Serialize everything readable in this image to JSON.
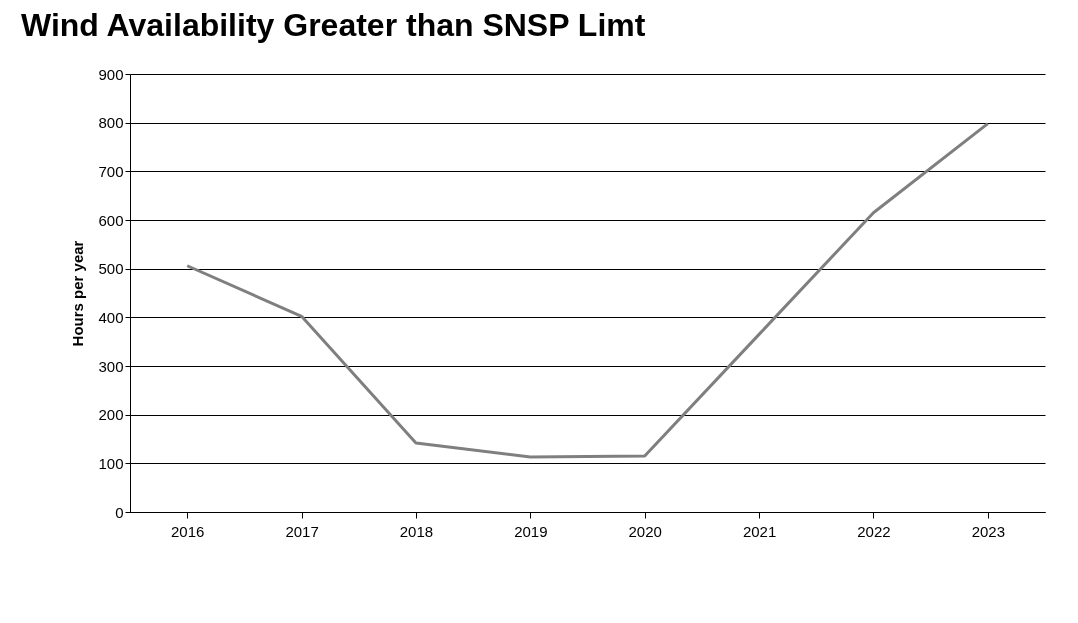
{
  "chart_data": {
    "type": "line",
    "title": "Wind Availability Greater than SNSP Limt",
    "ylabel": "Hours per year",
    "categories": [
      "2016",
      "2017",
      "2018",
      "2019",
      "2020",
      "2021",
      "2022",
      "2023"
    ],
    "series": [
      {
        "color": "#7f7f7f",
        "values": [
          506,
          402,
          142,
          113,
          115,
          365,
          615,
          798
        ]
      }
    ],
    "ylim": [
      0,
      900
    ],
    "yticks": [
      0,
      100,
      200,
      300,
      400,
      500,
      600,
      700,
      800,
      900
    ],
    "grid": "y",
    "marker": "none"
  }
}
